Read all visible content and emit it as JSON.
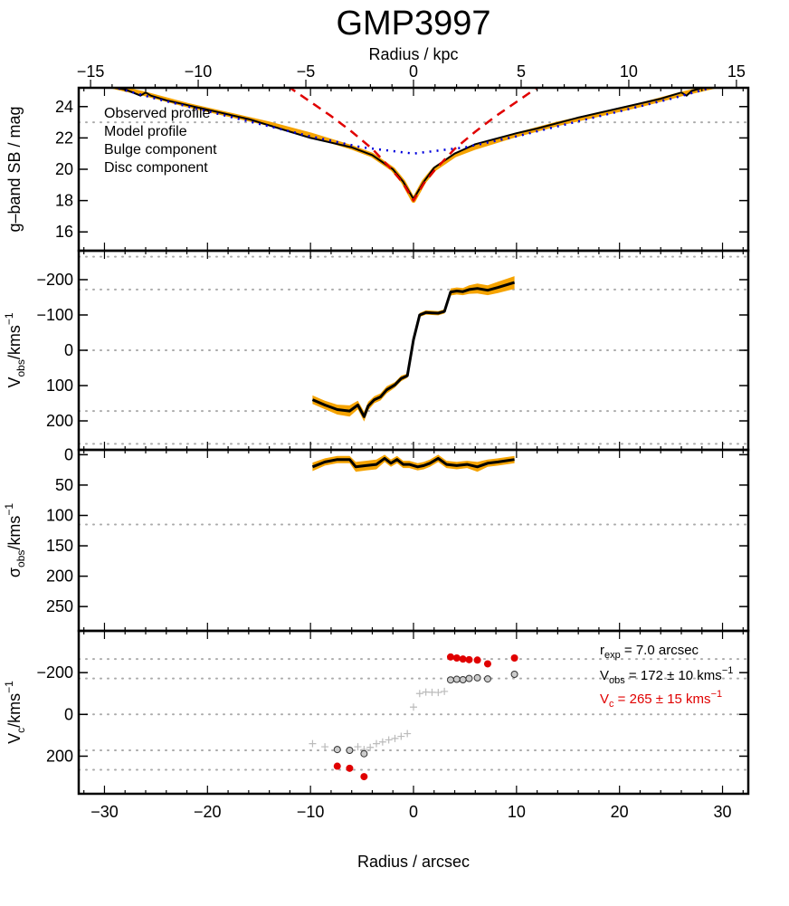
{
  "title": "GMP3997",
  "top_axis": {
    "label": "Radius / kpc",
    "ticks": [
      -15,
      -10,
      -5,
      0,
      5,
      10,
      15
    ],
    "range": [
      -15.55,
      15.55
    ]
  },
  "bottom_axis": {
    "label": "Radius / arcsec",
    "ticks": [
      -30,
      -20,
      -10,
      0,
      10,
      20,
      30
    ]
  },
  "chart_data": [
    {
      "type": "line",
      "panel": "surface-brightness",
      "ylabel": "g–band SB / mag",
      "xlim": [
        -32.5,
        32.5
      ],
      "ylim": [
        25.2,
        14.8
      ],
      "yticks": [
        16,
        18,
        20,
        22,
        24
      ],
      "hlines": [
        23.0
      ],
      "legend": [
        "Observed profile",
        "Model profile",
        "Bulge component",
        "Disc component"
      ],
      "legend_colors": [
        "#000000",
        "#f5a300",
        "#e00000",
        "#0000dd"
      ],
      "observed": {
        "x": [
          -30,
          -28,
          -26.5,
          -26,
          -25.5,
          -24,
          -20,
          -16,
          -12,
          -10,
          -6,
          -4,
          -2,
          -1,
          0,
          1,
          2,
          4,
          6,
          10,
          12,
          16,
          20,
          24,
          26,
          26.5,
          27,
          28,
          30
        ],
        "y": [
          25.3,
          25.1,
          24.7,
          24.9,
          24.7,
          24.4,
          23.8,
          23.2,
          22.4,
          22.0,
          21.4,
          20.9,
          20.0,
          19.2,
          18.1,
          19.2,
          20.1,
          21.0,
          21.6,
          22.3,
          22.6,
          23.3,
          23.9,
          24.5,
          24.9,
          24.7,
          25.0,
          25.2,
          25.3
        ]
      },
      "model": {
        "x": [
          -30,
          -26,
          -22,
          -18,
          -14,
          -10,
          -6,
          -4,
          -2,
          -1,
          0,
          1,
          2,
          4,
          6,
          10,
          14,
          18,
          22,
          26,
          30
        ],
        "y": [
          25.4,
          24.8,
          24.1,
          23.5,
          22.9,
          22.2,
          21.4,
          20.9,
          20.0,
          19.2,
          18.0,
          19.2,
          20.0,
          20.9,
          21.4,
          22.2,
          22.9,
          23.5,
          24.1,
          24.8,
          25.4
        ]
      },
      "bulge": {
        "x": [
          -12.2,
          -10,
          -8,
          -6,
          -4,
          -2,
          -1,
          0,
          1,
          2,
          4,
          6,
          8,
          10,
          12.2
        ],
        "y": [
          25.3,
          24.3,
          23.4,
          22.4,
          21.3,
          19.9,
          19.1,
          18.0,
          19.1,
          19.9,
          21.3,
          22.4,
          23.4,
          24.3,
          25.3
        ]
      },
      "disc": {
        "x": [
          -30,
          -25,
          -20,
          -15,
          -10,
          -5,
          0,
          5,
          10,
          15,
          20,
          25,
          30
        ],
        "y": [
          25.4,
          24.5,
          23.7,
          22.9,
          22.1,
          21.4,
          21.0,
          21.4,
          22.1,
          22.9,
          23.7,
          24.5,
          25.4
        ]
      }
    },
    {
      "type": "line",
      "panel": "velocity",
      "ylabel": "V_obs/kms^−1",
      "xlim": [
        -32.5,
        32.5
      ],
      "ylim": [
        -282,
        282
      ],
      "yticks": [
        200,
        100,
        0,
        -100,
        -200
      ],
      "hlines": [
        172,
        0,
        -172,
        -265,
        265
      ],
      "series": {
        "x": [
          -9.8,
          -8.6,
          -7.4,
          -6.2,
          -5.4,
          -4.8,
          -4.4,
          -3.8,
          -3.2,
          -2.6,
          -1.8,
          -1.2,
          -0.6,
          0,
          0.6,
          1.2,
          1.8,
          2.4,
          3.0,
          3.6,
          4.2,
          4.8,
          5.4,
          6.2,
          7.2,
          8.2,
          9.8
        ],
        "y": [
          140,
          155,
          168,
          172,
          155,
          188,
          158,
          140,
          132,
          112,
          98,
          80,
          72,
          -30,
          -100,
          -107,
          -106,
          -105,
          -110,
          -165,
          -168,
          -166,
          -172,
          -175,
          -170,
          -178,
          -192
        ],
        "err": [
          12,
          12,
          14,
          16,
          12,
          14,
          12,
          10,
          10,
          10,
          8,
          8,
          6,
          6,
          6,
          6,
          6,
          6,
          6,
          10,
          10,
          10,
          12,
          14,
          14,
          16,
          18
        ]
      }
    },
    {
      "type": "line",
      "panel": "dispersion",
      "ylabel": "σ_obs/kms^−1",
      "xlim": [
        -32.5,
        32.5
      ],
      "ylim": [
        -8,
        290
      ],
      "yticks": [
        250,
        200,
        150,
        100,
        50,
        0
      ],
      "hlines": [
        115
      ],
      "series": {
        "x": [
          -9.8,
          -8.6,
          -7.4,
          -6.2,
          -5.6,
          -4.6,
          -3.6,
          -2.8,
          -2.2,
          -1.6,
          -1.0,
          -0.4,
          0.4,
          1.0,
          1.6,
          2.4,
          3.2,
          4.2,
          5.2,
          6.2,
          7.2,
          8.2,
          9.8
        ],
        "y": [
          20,
          12,
          8,
          8,
          20,
          18,
          16,
          6,
          14,
          8,
          16,
          16,
          20,
          18,
          14,
          6,
          16,
          18,
          16,
          20,
          14,
          12,
          8
        ],
        "err": [
          7,
          6,
          6,
          6,
          8,
          8,
          8,
          6,
          6,
          6,
          6,
          6,
          6,
          6,
          6,
          6,
          6,
          6,
          6,
          8,
          6,
          6,
          6
        ]
      }
    },
    {
      "type": "scatter",
      "panel": "circular-velocity",
      "ylabel": "V_c/kms^−1",
      "xlim": [
        -32.5,
        32.5
      ],
      "ylim": [
        -400,
        380
      ],
      "yticks": [
        200,
        0,
        -200
      ],
      "hlines": [
        265,
        172,
        0,
        -172,
        -265
      ],
      "annotations": {
        "r_exp": "r",
        "r_exp_sub": "exp",
        "r_exp_value": " = 7.0 arcsec",
        "v_obs": "V",
        "v_obs_sub": "obs",
        "v_obs_value": " = 172 ± 10 kms",
        "v_obs_unit_sup": "−1",
        "v_c": "V",
        "v_c_sub": "c",
        "v_c_value": " = 265 ± 15 kms",
        "v_c_unit_sup": "−1",
        "v_c_color": "#e00000"
      },
      "plus_points": {
        "x": [
          -9.8,
          -8.6,
          -7.4,
          -6.2,
          -5.4,
          -4.8,
          -4.2,
          -3.6,
          -3.0,
          -2.4,
          -1.8,
          -1.2,
          -0.6,
          0,
          0.6,
          1.2,
          1.8,
          2.4,
          3.0
        ],
        "y": [
          140,
          155,
          168,
          172,
          155,
          168,
          158,
          140,
          132,
          122,
          115,
          105,
          92,
          -35,
          -100,
          -107,
          -106,
          -105,
          -110
        ]
      },
      "open_points": {
        "x": [
          -7.4,
          -6.2,
          -4.8,
          3.6,
          4.2,
          4.8,
          5.4,
          6.2,
          7.2,
          9.8
        ],
        "y": [
          168,
          172,
          188,
          -165,
          -168,
          -166,
          -172,
          -175,
          -170,
          -192
        ]
      },
      "red_points": {
        "x": [
          -7.4,
          -6.2,
          -4.8,
          3.6,
          4.2,
          4.8,
          5.4,
          6.2,
          7.2,
          9.8
        ],
        "y": [
          248,
          258,
          298,
          -275,
          -270,
          -265,
          -262,
          -260,
          -242,
          -270
        ]
      }
    }
  ]
}
